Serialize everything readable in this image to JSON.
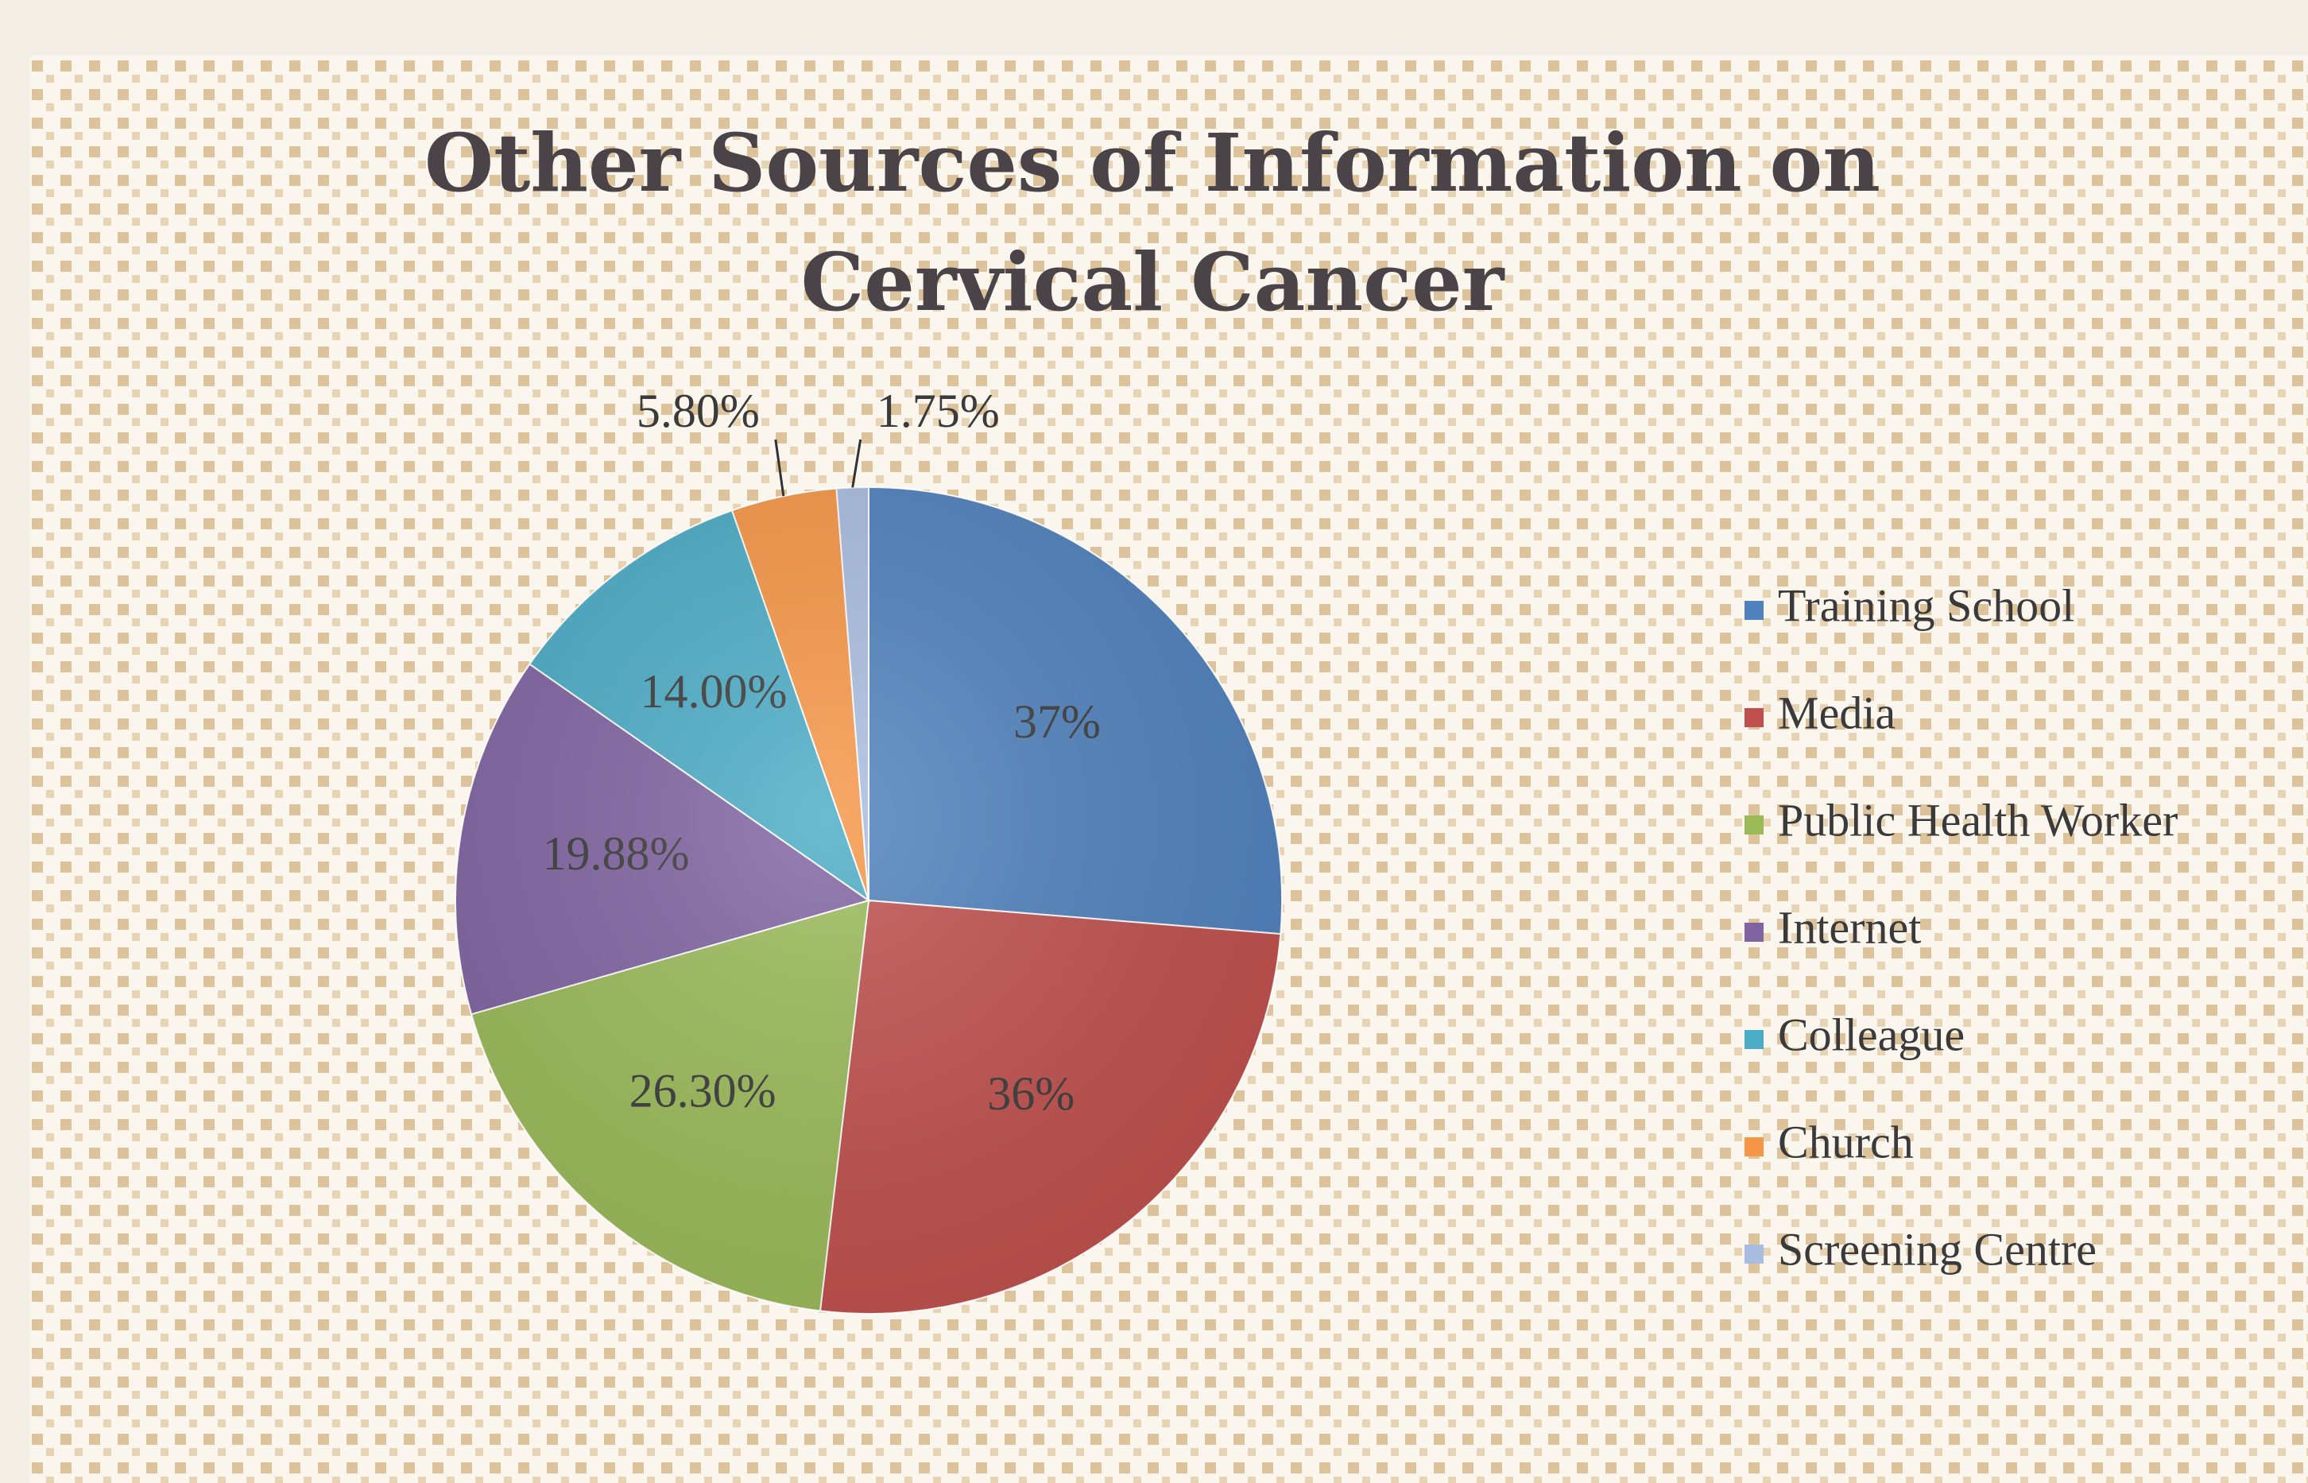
{
  "chart_data": {
    "type": "pie",
    "title": "Other Sources of Information on Cervical Cancer",
    "categories": [
      "Training School",
      "Media",
      "Public Health Worker",
      "Internet",
      "Colleague",
      "Church",
      "Screening Centre"
    ],
    "values": [
      37,
      36,
      26.3,
      19.88,
      14.0,
      5.8,
      1.75
    ],
    "value_labels": [
      "37%",
      "36%",
      "26.30%",
      "19.88%",
      "14.00%",
      "5.80%",
      "1.75%"
    ],
    "colors": [
      "#4f81bd",
      "#c0504d",
      "#9bbb59",
      "#8064a2",
      "#4bacc6",
      "#f79646",
      "#a9bde0"
    ],
    "legend": "right"
  }
}
